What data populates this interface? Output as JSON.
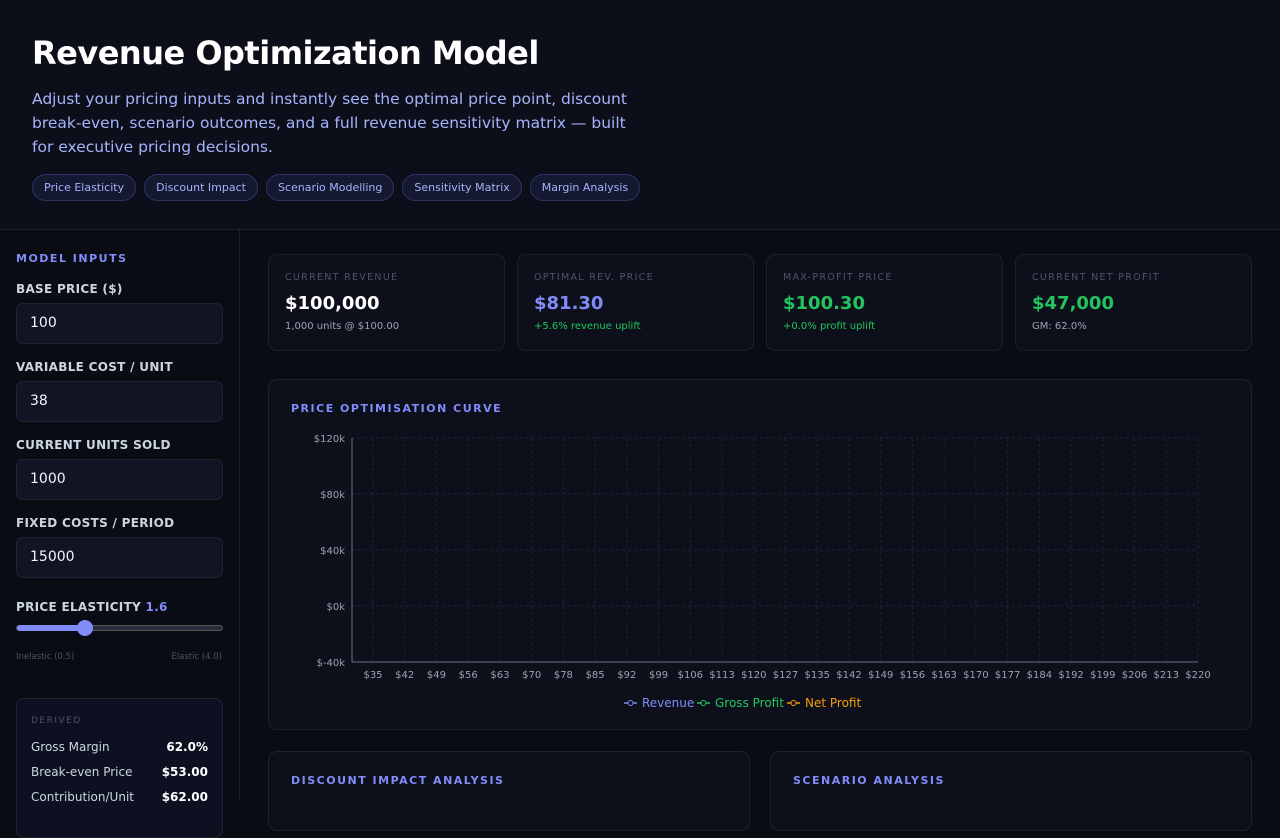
{
  "header": {
    "title": "Revenue Optimization Model",
    "description": "Adjust your pricing inputs and instantly see the optimal price point, discount break-even, scenario outcomes, and a full revenue sensitivity matrix — built for executive pricing decisions.",
    "tags": [
      "Price Elasticity",
      "Discount Impact",
      "Scenario Modelling",
      "Sensitivity Matrix",
      "Margin Analysis"
    ]
  },
  "sidebar": {
    "title": "MODEL INPUTS",
    "inputs": [
      {
        "label": "BASE PRICE ($)",
        "value": "100"
      },
      {
        "label": "VARIABLE COST / UNIT",
        "value": "38"
      },
      {
        "label": "CURRENT UNITS SOLD",
        "value": "1000"
      },
      {
        "label": "FIXED COSTS / PERIOD",
        "value": "15000"
      }
    ],
    "slider": {
      "label": "PRICE ELASTICITY",
      "value": "1.6",
      "min_label": "Inelastic (0.5)",
      "max_label": "Elastic (4.0)"
    },
    "derived": {
      "title": "DERIVED",
      "rows": [
        {
          "label": "Gross Margin",
          "value": "62.0%"
        },
        {
          "label": "Break-even Price",
          "value": "$53.00"
        },
        {
          "label": "Contribution/Unit",
          "value": "$62.00"
        }
      ]
    }
  },
  "kpis": [
    {
      "label": "CURRENT REVENUE",
      "value": "$100,000",
      "note": "1,000 units @ $100.00"
    },
    {
      "label": "OPTIMAL REV. PRICE",
      "value": "$81.30",
      "note": "+5.6% revenue uplift"
    },
    {
      "label": "MAX-PROFIT PRICE",
      "value": "$100.30",
      "note": "+0.0% profit uplift"
    },
    {
      "label": "CURRENT NET PROFIT",
      "value": "$47,000",
      "note": "GM: 62.0%"
    }
  ],
  "chart": {
    "title": "PRICE OPTIMISATION CURVE",
    "yticks": [
      "$120k",
      "$80k",
      "$40k",
      "$0k",
      "$-40k"
    ],
    "xticks": [
      "$35",
      "$42",
      "$49",
      "$56",
      "$63",
      "$70",
      "$78",
      "$85",
      "$92",
      "$99",
      "$106",
      "$113",
      "$120",
      "$127",
      "$135",
      "$142",
      "$149",
      "$156",
      "$163",
      "$170",
      "$177",
      "$184",
      "$192",
      "$199",
      "$206",
      "$213",
      "$220"
    ],
    "legend": [
      "Revenue",
      "Gross Profit",
      "Net Profit"
    ]
  },
  "panels": [
    "DISCOUNT IMPACT ANALYSIS",
    "SCENARIO ANALYSIS"
  ]
}
